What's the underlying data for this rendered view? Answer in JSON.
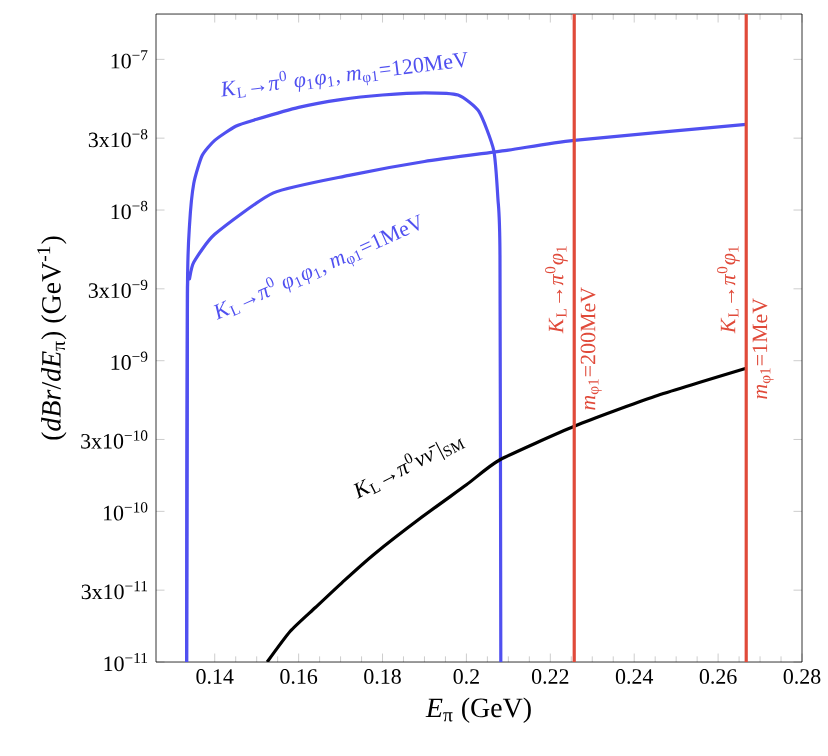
{
  "chart_data": {
    "type": "line",
    "xlabel": "*E*$_{π}$ (GeV)",
    "ylabel": "(*dBr*/*dE*$_{π}$)  (GeV$^{-1}$)",
    "log": "y",
    "grid": false,
    "marker": "none",
    "line_style": "solid",
    "xlim": [
      0.126,
      0.28
    ],
    "ylim": [
      1e-11,
      2e-07
    ],
    "xticks": [
      0.14,
      0.16,
      0.18,
      0.2,
      0.22,
      0.24,
      0.26,
      0.28
    ],
    "yticks": [
      {
        "value": 1e-11,
        "label": "10$^{−11}$"
      },
      {
        "value": 3e-11,
        "label": "3x10$^{−11}$"
      },
      {
        "value": 1e-10,
        "label": "10$^{−10}$"
      },
      {
        "value": 3e-10,
        "label": "3x10$^{−10}$"
      },
      {
        "value": 1e-09,
        "label": "10$^{−9}$"
      },
      {
        "value": 3e-09,
        "label": "3x10$^{−9}$"
      },
      {
        "value": 1e-08,
        "label": "10$^{−8}$"
      },
      {
        "value": 3e-08,
        "label": "3x10$^{−8}$"
      },
      {
        "value": 1e-07,
        "label": "10$^{−7}$"
      }
    ],
    "series": [
      {
        "color": "#5050f0",
        "x": [
          0.1333,
          0.1335,
          0.134,
          0.135,
          0.137,
          0.14,
          0.145,
          0.15,
          0.16,
          0.17,
          0.18,
          0.19,
          0.198,
          0.203,
          0.2065,
          0.2075,
          0.208,
          0.2082
        ],
        "values": [
          1e-11,
          3e-09,
          8e-09,
          1.5e-08,
          2.3e-08,
          2.9e-08,
          3.6e-08,
          4e-08,
          4.8e-08,
          5.4e-08,
          5.8e-08,
          6e-08,
          5.8e-08,
          4.5e-08,
          2.5e-08,
          1.2e-08,
          5e-09,
          1e-11
        ]
      },
      {
        "color": "#5050f0",
        "x": [
          0.1333,
          0.1335,
          0.134,
          0.135,
          0.14,
          0.154,
          0.172,
          0.19,
          0.21,
          0.2257,
          0.2667
        ],
        "values": [
          1e-11,
          2.8e-09,
          3.5e-09,
          4.5e-09,
          6.9e-09,
          1.3e-08,
          1.7e-08,
          2.1e-08,
          2.5e-08,
          2.9e-08,
          3.7e-08
        ]
      },
      {
        "color": "#000000",
        "x": [
          0.1525,
          0.158,
          0.164,
          0.171,
          0.178,
          0.189,
          0.2,
          0.208,
          0.226,
          0.245,
          0.2667
        ],
        "values": [
          1e-11,
          1.6e-11,
          2.3e-11,
          3.5e-11,
          5.2e-11,
          9e-11,
          1.5e-10,
          2.2e-10,
          3.7e-10,
          5.8e-10,
          8.9e-10
        ]
      }
    ],
    "ref_lines": [
      {
        "axis": "x",
        "value": 0.2257,
        "color": "#e04a3a",
        "label": "*K*$_{L}$→*π*$^{0}$*φ*$_{1}$"
      },
      {
        "axis": "x",
        "value": 0.2667,
        "color": "#e04a3a",
        "label": "*K*$_{L}$→*π*$^{0}$*φ*$_{1}$"
      }
    ],
    "annotations": [
      "*K*$_{L}$→*π*$^{0}$ *φ*$_{1}$*φ*$_{1}$,  *m*$_{φ1}$=120MeV",
      "*K*$_{L}$→*π*$^{0}$ *φ*$_{1}$*φ*$_{1}$,  *m*$_{φ1}$=1MeV",
      "*K*$_{L}$→*π*$^{0}$*νν̄*|$_{SM}$",
      "*m*$_{φ1}$=200MeV",
      "*m*$_{φ1}$=1MeV"
    ]
  }
}
